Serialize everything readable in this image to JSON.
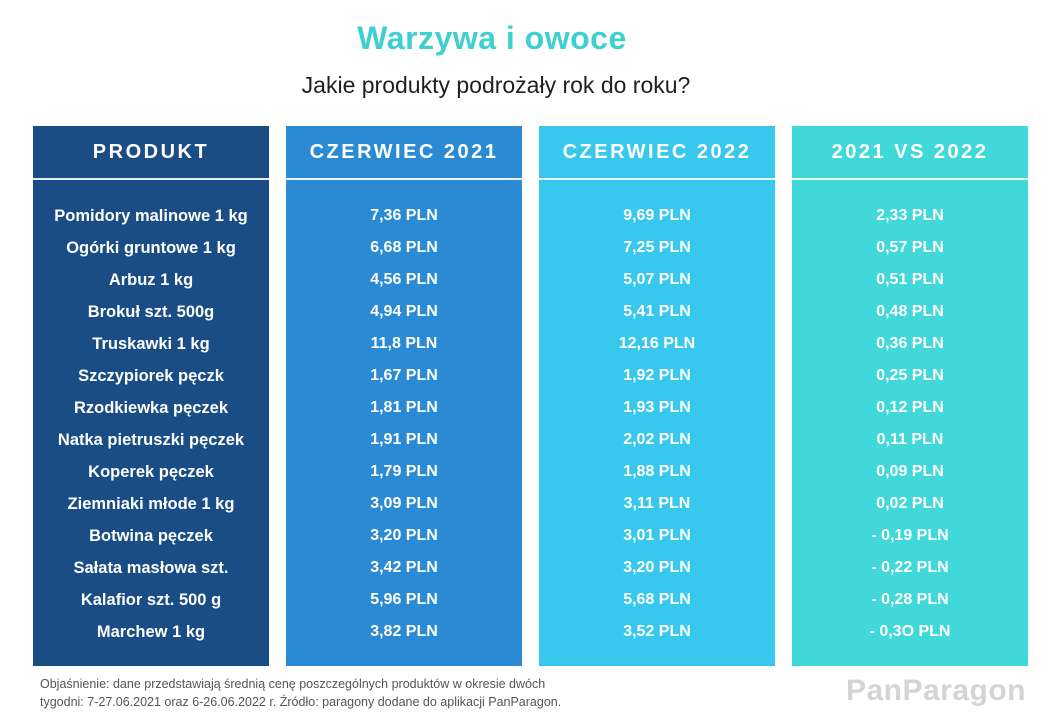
{
  "title": "Warzywa i owoce",
  "subtitle": "Jakie produkty podrożały rok do roku?",
  "columns": {
    "product": "PRODUKT",
    "june2021": "CZERWIEC 2021",
    "june2022": "CZERWIEC 2022",
    "diff": "2021 VS 2022"
  },
  "rows": [
    {
      "product": "Pomidory malinowe 1 kg",
      "june2021": "7,36 PLN",
      "june2022": "9,69 PLN",
      "diff": "2,33 PLN"
    },
    {
      "product": "Ogórki gruntowe 1 kg",
      "june2021": "6,68 PLN",
      "june2022": "7,25 PLN",
      "diff": "0,57 PLN"
    },
    {
      "product": "Arbuz 1 kg",
      "june2021": "4,56 PLN",
      "june2022": "5,07 PLN",
      "diff": "0,51 PLN"
    },
    {
      "product": "Brokuł szt. 500g",
      "june2021": "4,94 PLN",
      "june2022": "5,41 PLN",
      "diff": "0,48 PLN"
    },
    {
      "product": "Truskawki 1 kg",
      "june2021": "11,8 PLN",
      "june2022": "12,16 PLN",
      "diff": "0,36 PLN"
    },
    {
      "product": "Szczypiorek pęczk",
      "june2021": "1,67 PLN",
      "june2022": "1,92 PLN",
      "diff": "0,25 PLN"
    },
    {
      "product": "Rzodkiewka pęczek",
      "june2021": "1,81 PLN",
      "june2022": "1,93 PLN",
      "diff": "0,12 PLN"
    },
    {
      "product": "Natka pietruszki pęczek",
      "june2021": "1,91 PLN",
      "june2022": "2,02 PLN",
      "diff": "0,11 PLN"
    },
    {
      "product": "Koperek pęczek",
      "june2021": "1,79 PLN",
      "june2022": "1,88 PLN",
      "diff": "0,09 PLN"
    },
    {
      "product": "Ziemniaki młode 1 kg",
      "june2021": "3,09 PLN",
      "june2022": "3,11 PLN",
      "diff": "0,02 PLN"
    },
    {
      "product": "Botwina pęczek",
      "june2021": "3,20 PLN",
      "june2022": "3,01 PLN",
      "diff": "- 0,19 PLN"
    },
    {
      "product": "Sałata masłowa szt.",
      "june2021": "3,42 PLN",
      "june2022": "3,20 PLN",
      "diff": "- 0,22 PLN"
    },
    {
      "product": "Kalafior szt. 500 g",
      "june2021": "5,96 PLN",
      "june2022": "5,68 PLN",
      "diff": "- 0,28 PLN"
    },
    {
      "product": "Marchew 1 kg",
      "june2021": "3,82 PLN",
      "june2022": "3,52 PLN",
      "diff": "- 0,3O PLN"
    }
  ],
  "footnote": {
    "line1": "Objaśnienie: dane przedstawiają średnią cenę poszczególnych produktów w okresie dwóch",
    "line2": "tygodni: 7-27.06.2021 oraz 6-26.06.2022 r.  Źródło: paragony dodane do aplikacji PanParagon."
  },
  "brand": "PanParagon",
  "colors": {
    "title": "#3ecfd0",
    "product_column": "#1a4d86",
    "june2021_column": "#2a8bd4",
    "june2022_column": "#38c8ee",
    "diff_column": "#41d8d9"
  }
}
